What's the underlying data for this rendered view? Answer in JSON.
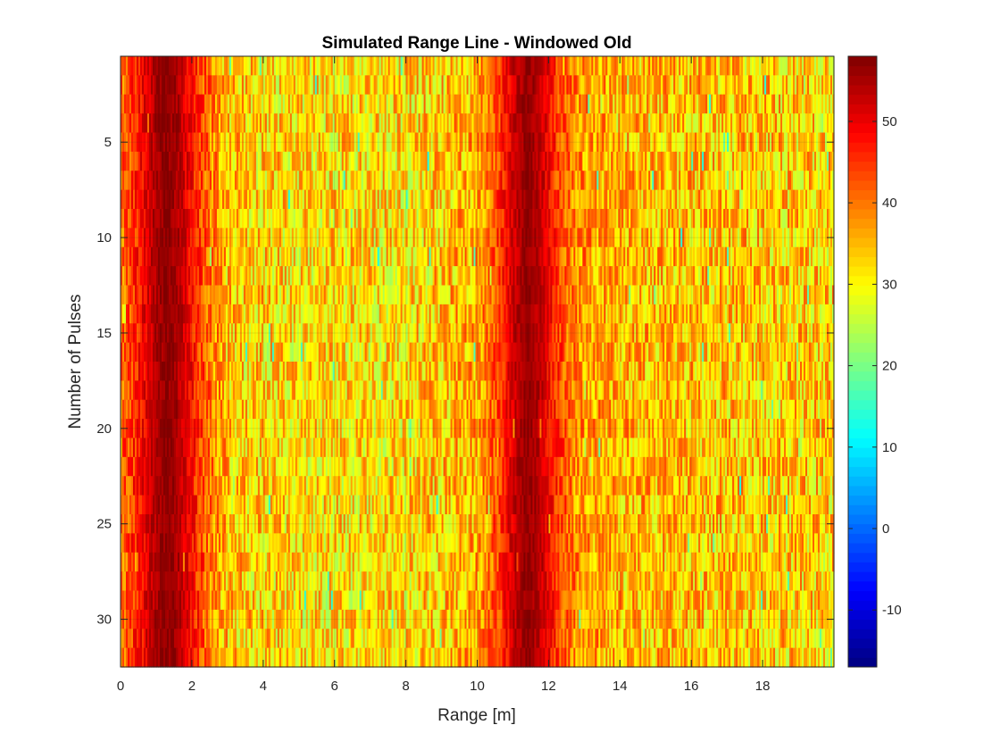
{
  "chart_data": {
    "type": "heatmap",
    "title": "Simulated Range Line - Windowed Old",
    "xlabel": "Range [m]",
    "ylabel": "Number of Pulses",
    "xlim": [
      0,
      20
    ],
    "ylim": [
      0.5,
      32.5
    ],
    "y_direction": "reversed",
    "x_ticks": [
      0,
      2,
      4,
      6,
      8,
      10,
      12,
      14,
      16,
      18
    ],
    "x_tick_labels": [
      "0",
      "2",
      "4",
      "6",
      "8",
      "10",
      "12",
      "14",
      "16",
      "18"
    ],
    "y_ticks": [
      5,
      10,
      15,
      20,
      25,
      30
    ],
    "y_tick_labels": [
      "5",
      "10",
      "15",
      "20",
      "25",
      "30"
    ],
    "colormap": "jet",
    "clim": [
      -17,
      58
    ],
    "colorbar_ticks": [
      -10,
      0,
      10,
      20,
      30,
      40,
      50
    ],
    "colorbar_tick_labels": [
      "-10",
      "0",
      "10",
      "20",
      "30",
      "40",
      "50"
    ],
    "grid": true,
    "pulses": 32,
    "profile": {
      "description_values": "approximate mean intensity along range; peaks near 1.3 m and 11.4 m, background noise ~30",
      "range": [
        0,
        0.5,
        1.0,
        1.3,
        1.6,
        2.0,
        2.5,
        3.0,
        5.0,
        8.0,
        10.0,
        10.5,
        11.0,
        11.4,
        11.8,
        12.2,
        12.8,
        14.0,
        17.0,
        20.0
      ],
      "mean_value": [
        40,
        47,
        55,
        57,
        55,
        48,
        40,
        34,
        32,
        32,
        36,
        42,
        52,
        57,
        53,
        45,
        38,
        35,
        34,
        33
      ]
    }
  }
}
